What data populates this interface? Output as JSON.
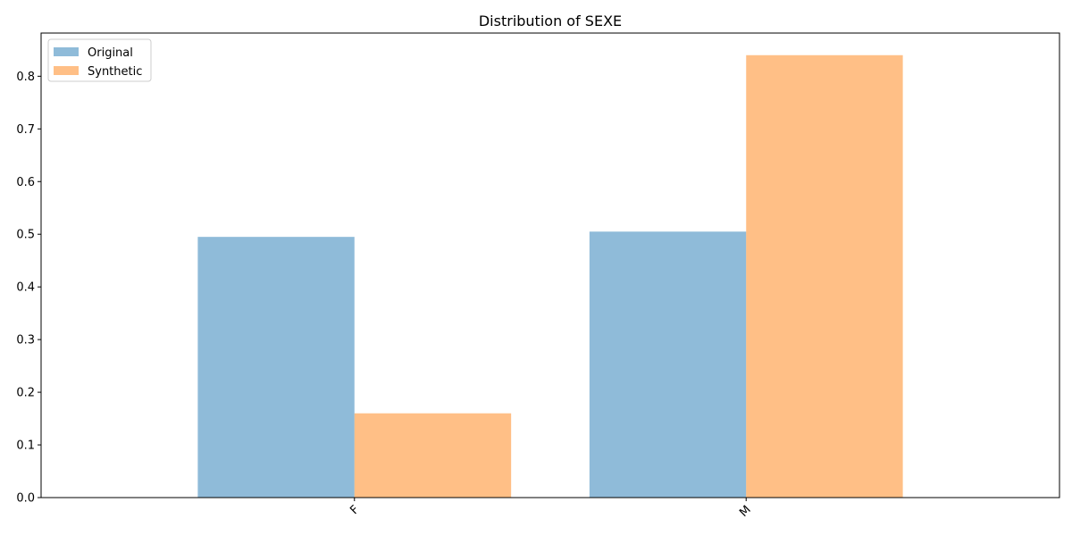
{
  "chart_data": {
    "type": "bar",
    "title": "Distribution of SEXE",
    "xlabel": "",
    "ylabel": "",
    "categories": [
      "F",
      "M"
    ],
    "series": [
      {
        "name": "Original",
        "values": [
          0.495,
          0.505
        ],
        "color": "#1f77b4",
        "opacity": 0.5
      },
      {
        "name": "Synthetic",
        "values": [
          0.16,
          0.84
        ],
        "color": "#ff7f0e",
        "opacity": 0.5
      }
    ],
    "ylim": [
      0,
      0.882
    ],
    "yticks": [
      0.0,
      0.1,
      0.2,
      0.3,
      0.4,
      0.5,
      0.6,
      0.7,
      0.8
    ],
    "ytick_labels": [
      "0.0",
      "0.1",
      "0.2",
      "0.3",
      "0.4",
      "0.5",
      "0.6",
      "0.7",
      "0.8"
    ],
    "xtick_rotation_deg": 45,
    "grid": false,
    "legend_position": "upper-left"
  }
}
